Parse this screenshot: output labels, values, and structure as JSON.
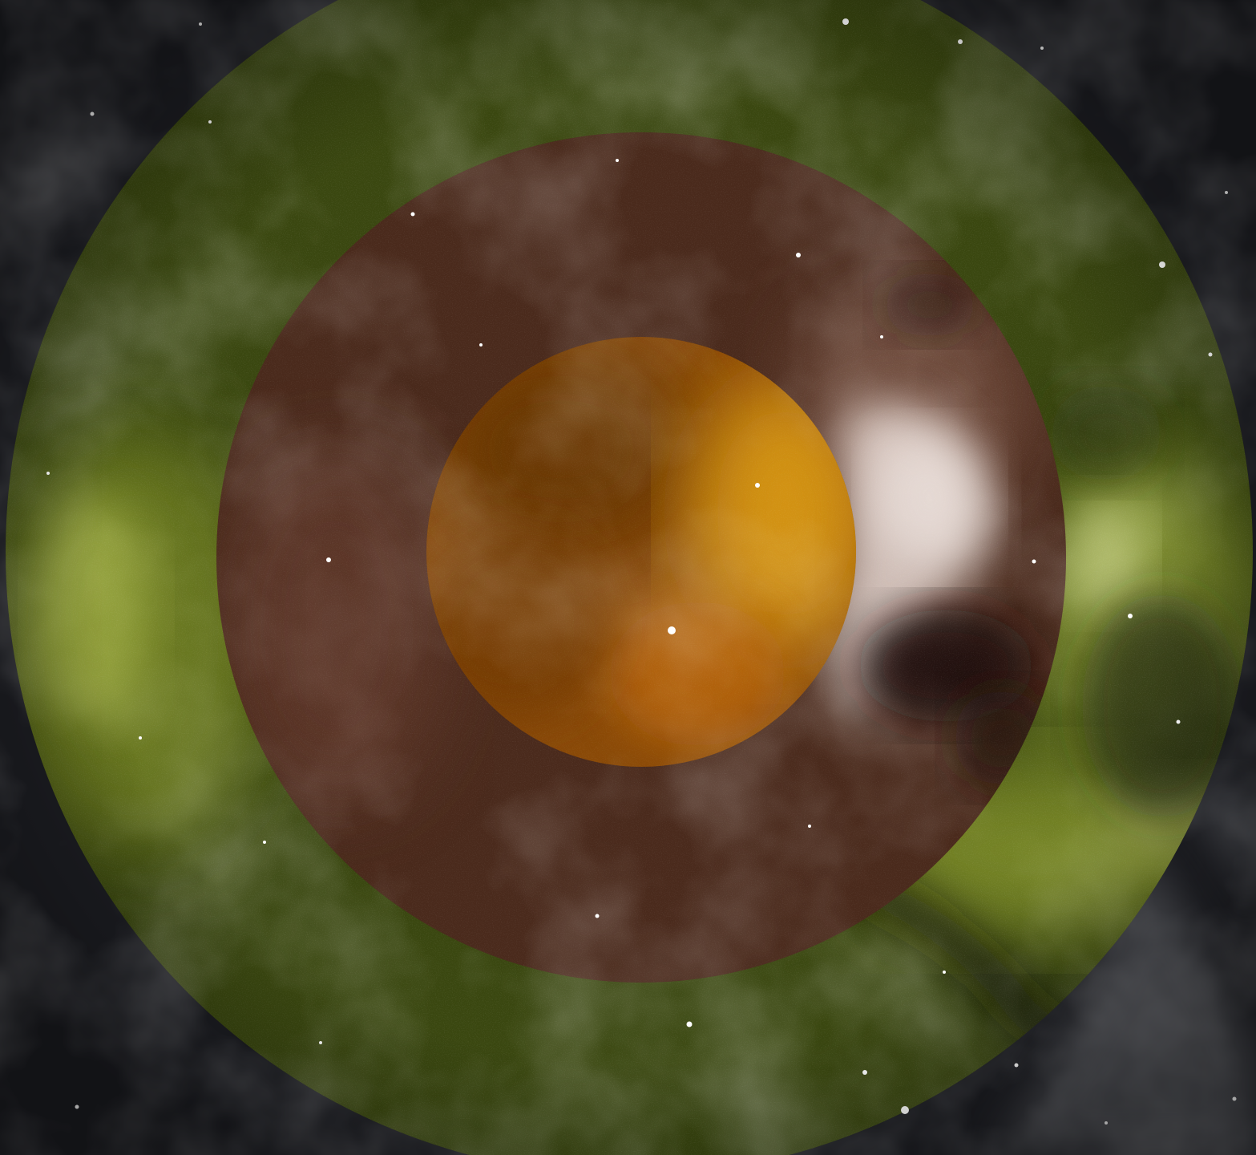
{
  "image": {
    "subject": "astrophotograph-concentric-color-filter-rings",
    "layers": [
      {
        "name": "background-starfield",
        "filter": "monochrome",
        "color": "#2a2b30"
      },
      {
        "name": "outer-ring",
        "filter": "green-yellow",
        "color": "#4a5a12"
      },
      {
        "name": "middle-ring",
        "filter": "red-brown",
        "color": "#4a2a1c"
      },
      {
        "name": "inner-disc",
        "filter": "orange",
        "color": "#a85a0a"
      }
    ],
    "nebula_colors": {
      "bright_region": "#e8ddd6",
      "dark_lane": "#1a0f0a",
      "green_glow": "#a8b83a"
    }
  }
}
